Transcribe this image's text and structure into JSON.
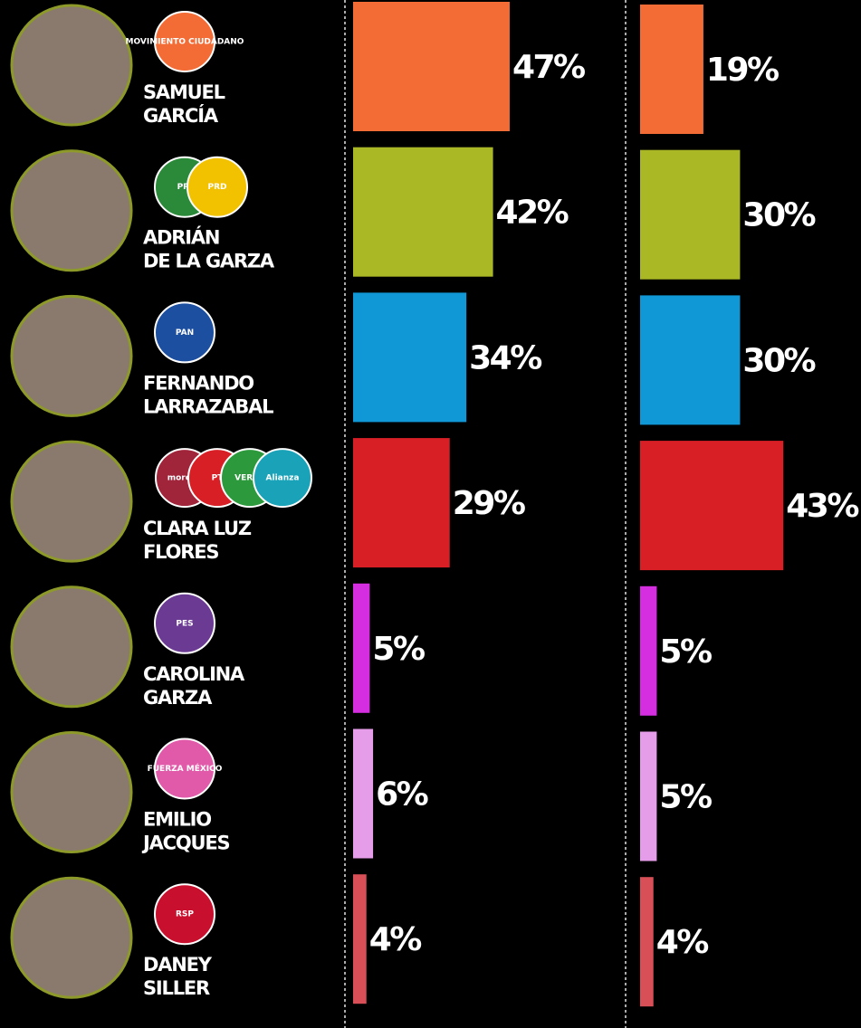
{
  "candidates": [
    {
      "name": [
        "SAMUEL",
        "GARCÍA"
      ],
      "parties": [
        "MOVIMIENTO CIUDADANO"
      ]
    },
    {
      "name": [
        "ADRIÁN",
        "DE LA GARZA"
      ],
      "parties": [
        "PRI",
        "PRD"
      ]
    },
    {
      "name": [
        "FERNANDO",
        "LARRAZABAL"
      ],
      "parties": [
        "PAN"
      ]
    },
    {
      "name": [
        "CLARA LUZ",
        "FLORES"
      ],
      "parties": [
        "morena",
        "PT",
        "VERDE",
        "Alianza"
      ]
    },
    {
      "name": [
        "CAROLINA",
        "GARZA"
      ],
      "parties": [
        "PES"
      ]
    },
    {
      "name": [
        "EMILIO",
        "JACQUES"
      ],
      "parties": [
        "FUERZA MÉXICO"
      ]
    },
    {
      "name": [
        "DANEY",
        "SILLER"
      ],
      "parties": [
        "RSP"
      ]
    }
  ],
  "chart_data": [
    {
      "type": "bar",
      "orientation": "horizontal",
      "xlim": [
        0,
        100
      ],
      "values": [
        47,
        42,
        34,
        29,
        5,
        6,
        4
      ],
      "value_labels": [
        "47%",
        "42%",
        "34%",
        "29%",
        "5%",
        "6%",
        "4%"
      ],
      "colors": [
        "#f36c35",
        "#abb826",
        "#0f97d6",
        "#d91f26",
        "#d42ee0",
        "#e59de9",
        "#d84f58"
      ]
    },
    {
      "type": "bar",
      "orientation": "horizontal",
      "xlim": [
        0,
        100
      ],
      "values": [
        19,
        30,
        30,
        43,
        5,
        5,
        4
      ],
      "value_labels": [
        "19%",
        "30%",
        "30%",
        "43%",
        "5%",
        "5%",
        "4%"
      ],
      "colors": [
        "#f36c35",
        "#abb826",
        "#0f97d6",
        "#d91f26",
        "#d42ee0",
        "#e59de9",
        "#d84f58"
      ]
    }
  ]
}
